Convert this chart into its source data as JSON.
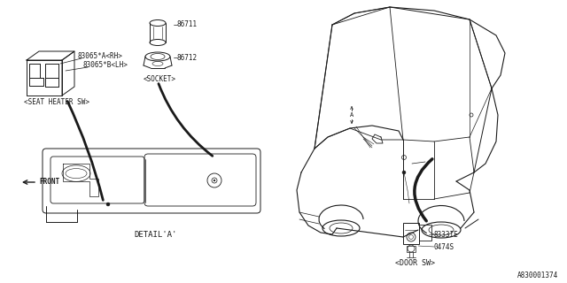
{
  "bg_color": "#ffffff",
  "line_color": "#1a1a1a",
  "part_numbers": {
    "seat_heater_rh": "83065*A〈RH〉",
    "seat_heater_lh": "83065*B〈LH〉",
    "socket_top": "86711",
    "socket_bottom": "86712",
    "door_sw_main": "8333IE",
    "door_sw_bolt": "0474S"
  },
  "labels": {
    "seat_heater": "〈SEAT HEATER SW〉",
    "socket": "〈SOCKET〉",
    "detail": "DETAIL'A'",
    "front": "FRONT",
    "door_sw": "〈DOOR SW〉",
    "diagram_id": "A830001374",
    "detail_a_marker": "A"
  }
}
